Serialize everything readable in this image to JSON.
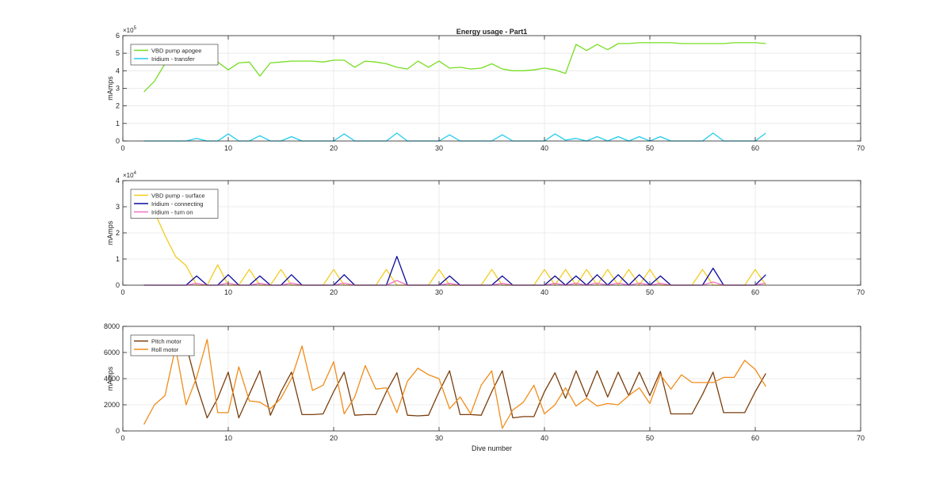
{
  "figure": {
    "title": "Energy usage - Part1",
    "xlabel": "Dive number"
  },
  "chart_data": [
    {
      "type": "line",
      "ylabel": "mAmps",
      "exponent": "5",
      "multiplier": 100000,
      "xlim": [
        0,
        70
      ],
      "ylim": [
        0,
        600000
      ],
      "xticks": [
        0,
        10,
        20,
        30,
        40,
        50,
        60,
        70
      ],
      "yticks": [
        0,
        100000,
        200000,
        300000,
        400000,
        500000,
        600000
      ],
      "ytick_labels": [
        "0",
        "1",
        "2",
        "3",
        "4",
        "5",
        "6"
      ],
      "grid": true,
      "legend_position": "top-left",
      "series": [
        {
          "name": "VBD pump apogee",
          "color": "#77dd22",
          "x": [
            2,
            3,
            4,
            5,
            6,
            7,
            8,
            9,
            10,
            11,
            12,
            13,
            14,
            15,
            16,
            17,
            18,
            19,
            20,
            21,
            22,
            23,
            24,
            25,
            26,
            27,
            28,
            29,
            30,
            31,
            32,
            33,
            34,
            35,
            36,
            37,
            38,
            39,
            40,
            41,
            42,
            43,
            44,
            45,
            46,
            47,
            48,
            49,
            50,
            51,
            52,
            53,
            54,
            55,
            56,
            57,
            58,
            59,
            60,
            61
          ],
          "y": [
            280000,
            340000,
            440000,
            500000,
            470000,
            500000,
            480000,
            450000,
            405000,
            445000,
            450000,
            370000,
            445000,
            450000,
            455000,
            455000,
            455000,
            450000,
            460000,
            460000,
            420000,
            455000,
            450000,
            440000,
            420000,
            410000,
            455000,
            420000,
            455000,
            415000,
            420000,
            410000,
            415000,
            440000,
            410000,
            400000,
            400000,
            405000,
            415000,
            405000,
            385000,
            550000,
            515000,
            550000,
            520000,
            555000,
            555000,
            560000,
            560000,
            560000,
            560000,
            555000,
            555000,
            555000,
            555000,
            555000,
            560000,
            560000,
            560000,
            555000
          ]
        },
        {
          "name": "Iridium - transfer",
          "color": "#22ccee",
          "x": [
            2,
            3,
            4,
            5,
            6,
            7,
            8,
            9,
            10,
            11,
            12,
            13,
            14,
            15,
            16,
            17,
            18,
            19,
            20,
            21,
            22,
            23,
            24,
            25,
            26,
            27,
            28,
            29,
            30,
            31,
            32,
            33,
            34,
            35,
            36,
            37,
            38,
            39,
            40,
            41,
            42,
            43,
            44,
            45,
            46,
            47,
            48,
            49,
            50,
            51,
            52,
            53,
            54,
            55,
            56,
            57,
            58,
            59,
            60,
            61
          ],
          "y": [
            0,
            0,
            0,
            0,
            0,
            15000,
            0,
            0,
            40000,
            0,
            0,
            30000,
            0,
            0,
            25000,
            0,
            0,
            0,
            0,
            40000,
            0,
            0,
            0,
            0,
            45000,
            0,
            0,
            0,
            0,
            35000,
            0,
            0,
            0,
            0,
            35000,
            0,
            0,
            0,
            0,
            40000,
            5000,
            15000,
            0,
            25000,
            0,
            25000,
            0,
            25000,
            0,
            25000,
            0,
            0,
            0,
            0,
            45000,
            0,
            0,
            0,
            0,
            45000
          ]
        }
      ]
    },
    {
      "type": "line",
      "ylabel": "mAmps",
      "exponent": "4",
      "multiplier": 10000,
      "xlim": [
        0,
        70
      ],
      "ylim": [
        0,
        40000
      ],
      "xticks": [
        0,
        10,
        20,
        30,
        40,
        50,
        60,
        70
      ],
      "yticks": [
        0,
        10000,
        20000,
        30000,
        40000
      ],
      "ytick_labels": [
        "0",
        "1",
        "2",
        "3",
        "4"
      ],
      "grid": true,
      "legend_position": "top-left",
      "series": [
        {
          "name": "VBD pump - surface",
          "color": "#f2cc1d",
          "x": [
            2,
            3,
            4,
            5,
            6,
            7,
            8,
            9,
            10,
            11,
            12,
            13,
            14,
            15,
            16,
            17,
            18,
            19,
            20,
            21,
            22,
            23,
            24,
            25,
            26,
            27,
            28,
            29,
            30,
            31,
            32,
            33,
            34,
            35,
            36,
            37,
            38,
            39,
            40,
            41,
            42,
            43,
            44,
            45,
            46,
            47,
            48,
            49,
            50,
            51,
            52,
            53,
            54,
            55,
            56,
            57,
            58,
            59,
            60,
            61
          ],
          "y": [
            36000,
            28000,
            19000,
            11000,
            7500,
            0,
            0,
            7800,
            0,
            0,
            6000,
            0,
            0,
            6000,
            0,
            0,
            0,
            0,
            6000,
            0,
            0,
            0,
            0,
            6000,
            0,
            0,
            0,
            0,
            6000,
            0,
            0,
            0,
            0,
            6000,
            0,
            0,
            0,
            0,
            6000,
            0,
            6000,
            0,
            6000,
            0,
            6000,
            0,
            6000,
            0,
            6000,
            0,
            0,
            0,
            0,
            6000,
            0,
            0,
            0,
            0,
            6000,
            0
          ]
        },
        {
          "name": "Iridium - connecting",
          "color": "#0a0a9e",
          "x": [
            2,
            3,
            4,
            5,
            6,
            7,
            8,
            9,
            10,
            11,
            12,
            13,
            14,
            15,
            16,
            17,
            18,
            19,
            20,
            21,
            22,
            23,
            24,
            25,
            26,
            27,
            28,
            29,
            30,
            31,
            32,
            33,
            34,
            35,
            36,
            37,
            38,
            39,
            40,
            41,
            42,
            43,
            44,
            45,
            46,
            47,
            48,
            49,
            50,
            51,
            52,
            53,
            54,
            55,
            56,
            57,
            58,
            59,
            60,
            61
          ],
          "y": [
            0,
            0,
            0,
            0,
            0,
            3500,
            0,
            0,
            4000,
            0,
            0,
            3500,
            0,
            0,
            4000,
            0,
            0,
            0,
            0,
            4000,
            0,
            0,
            0,
            0,
            11000,
            0,
            0,
            0,
            0,
            3500,
            0,
            0,
            0,
            0,
            3500,
            0,
            0,
            0,
            0,
            3500,
            0,
            3500,
            0,
            4000,
            0,
            4000,
            0,
            4000,
            0,
            3500,
            0,
            0,
            0,
            0,
            6500,
            0,
            0,
            0,
            0,
            4000
          ]
        },
        {
          "name": "Iridium - turn on",
          "color": "#f070c8",
          "x": [
            2,
            3,
            4,
            5,
            6,
            7,
            8,
            9,
            10,
            11,
            12,
            13,
            14,
            15,
            16,
            17,
            18,
            19,
            20,
            21,
            22,
            23,
            24,
            25,
            26,
            27,
            28,
            29,
            30,
            31,
            32,
            33,
            34,
            35,
            36,
            37,
            38,
            39,
            40,
            41,
            42,
            43,
            44,
            45,
            46,
            47,
            48,
            49,
            50,
            51,
            52,
            53,
            54,
            55,
            56,
            57,
            58,
            59,
            60,
            61
          ],
          "y": [
            0,
            0,
            0,
            0,
            0,
            700,
            0,
            0,
            800,
            0,
            0,
            700,
            0,
            0,
            800,
            0,
            0,
            0,
            0,
            800,
            0,
            0,
            0,
            0,
            1800,
            0,
            0,
            0,
            0,
            700,
            0,
            0,
            0,
            0,
            700,
            0,
            0,
            0,
            0,
            700,
            0,
            700,
            0,
            800,
            0,
            800,
            0,
            800,
            0,
            700,
            0,
            0,
            0,
            0,
            1200,
            0,
            0,
            0,
            0,
            800
          ]
        }
      ]
    },
    {
      "type": "line",
      "ylabel": "mAmps",
      "xlim": [
        0,
        70
      ],
      "ylim": [
        0,
        8000
      ],
      "xticks": [
        0,
        10,
        20,
        30,
        40,
        50,
        60,
        70
      ],
      "yticks": [
        0,
        2000,
        4000,
        6000,
        8000
      ],
      "ytick_labels": [
        "0",
        "2000",
        "4000",
        "6000",
        "8000"
      ],
      "grid": true,
      "legend_position": "top-left",
      "series": [
        {
          "name": "Pitch motor",
          "color": "#7a3e0c",
          "x": [
            5,
            6,
            7,
            8,
            9,
            10,
            11,
            12,
            13,
            14,
            15,
            16,
            17,
            18,
            19,
            20,
            21,
            22,
            23,
            24,
            25,
            26,
            27,
            28,
            29,
            30,
            31,
            32,
            33,
            34,
            35,
            36,
            37,
            38,
            39,
            40,
            41,
            42,
            43,
            44,
            45,
            46,
            47,
            48,
            49,
            50,
            51,
            52,
            53,
            54,
            55,
            56,
            57,
            58,
            59,
            60,
            61
          ],
          "y": [
            6800,
            6600,
            3500,
            1000,
            2500,
            4500,
            1000,
            2800,
            4600,
            1200,
            3000,
            4500,
            1250,
            1250,
            1300,
            3000,
            4500,
            1200,
            1250,
            1250,
            3000,
            4450,
            1200,
            1150,
            1200,
            3000,
            4600,
            1250,
            1250,
            1200,
            3000,
            4600,
            1000,
            1100,
            1100,
            3000,
            4450,
            2500,
            4600,
            2600,
            4600,
            2600,
            4500,
            2700,
            4500,
            2700,
            4550,
            1300,
            1300,
            1300,
            2800,
            4500,
            1400,
            1400,
            1400,
            3000,
            4400
          ]
        },
        {
          "name": "Roll motor",
          "color": "#f08c1a",
          "x": [
            2,
            3,
            4,
            5,
            6,
            7,
            8,
            9,
            10,
            11,
            12,
            13,
            14,
            15,
            16,
            17,
            18,
            19,
            20,
            21,
            22,
            23,
            24,
            25,
            26,
            27,
            28,
            29,
            30,
            31,
            32,
            33,
            34,
            35,
            36,
            37,
            38,
            39,
            40,
            41,
            42,
            43,
            44,
            45,
            46,
            47,
            48,
            49,
            50,
            51,
            52,
            53,
            54,
            55,
            56,
            57,
            58,
            59,
            60,
            61
          ],
          "y": [
            500,
            2000,
            2700,
            6400,
            2000,
            4100,
            7000,
            1400,
            1400,
            4900,
            2300,
            2200,
            1700,
            2500,
            4000,
            6500,
            3100,
            3500,
            5300,
            1300,
            2600,
            5000,
            3200,
            3300,
            1400,
            3800,
            4800,
            4300,
            4000,
            1700,
            2600,
            1300,
            3500,
            4600,
            200,
            1600,
            2200,
            3500,
            1300,
            2000,
            3300,
            1900,
            2500,
            1900,
            2100,
            2000,
            2700,
            3300,
            2100,
            4300,
            3200,
            4300,
            3700,
            3700,
            3700,
            4100,
            4100,
            5400,
            4700,
            3400
          ]
        }
      ]
    }
  ]
}
